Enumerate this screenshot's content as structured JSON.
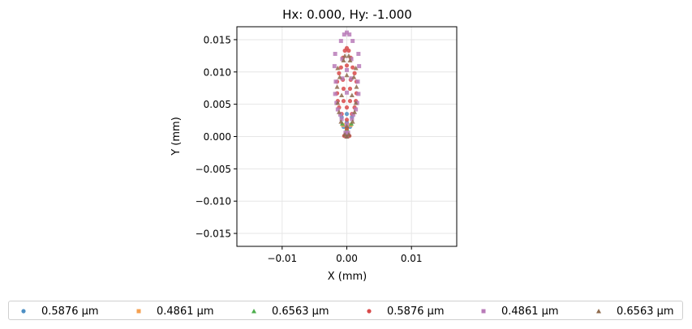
{
  "chart_data": {
    "type": "scatter",
    "title": "Hx: 0.000, Hy: -1.000",
    "xlabel": "X (mm)",
    "ylabel": "Y (mm)",
    "xlim": [
      -0.017,
      0.017
    ],
    "ylim": [
      -0.017,
      0.017
    ],
    "grid": true,
    "legend_placement": "bottom",
    "x_ticks": [
      -0.01,
      0.0,
      0.01
    ],
    "x_tick_labels": [
      "−0.01",
      "0.00",
      "0.01"
    ],
    "y_ticks": [
      0.015,
      0.01,
      0.005,
      0.0,
      -0.005,
      -0.01,
      -0.015
    ],
    "y_tick_labels": [
      "0.015",
      "0.010",
      "0.005",
      "0.000",
      "−0.005",
      "−0.010",
      "−0.015"
    ],
    "series": [
      {
        "name": "0.5876 µm",
        "marker": "circle",
        "color": "#4d8fc4",
        "points": [
          [
            0.0,
            0.0
          ],
          [
            -0.0003,
            0.0002
          ],
          [
            0.0003,
            0.0002
          ],
          [
            0.0,
            0.0008
          ],
          [
            -0.0005,
            0.0015
          ],
          [
            0.0005,
            0.0015
          ],
          [
            0.0,
            0.0022
          ],
          [
            -0.0008,
            0.003
          ],
          [
            0.0008,
            0.003
          ],
          [
            0.0,
            0.0035
          ]
        ]
      },
      {
        "name": "0.4861 µm",
        "marker": "square",
        "color": "#f5a050",
        "points": [
          [
            0.0,
            0.0
          ],
          [
            -0.0002,
            0.0003
          ],
          [
            0.0002,
            0.0003
          ],
          [
            0.0,
            0.001
          ],
          [
            -0.0006,
            0.0018
          ],
          [
            0.0006,
            0.0018
          ]
        ]
      },
      {
        "name": "0.6563 µm",
        "marker": "triangle",
        "color": "#4cae4c",
        "points": [
          [
            0.0,
            0.0
          ],
          [
            -0.0003,
            0.0004
          ],
          [
            0.0003,
            0.0004
          ],
          [
            0.0,
            0.0012
          ],
          [
            -0.0007,
            0.002
          ],
          [
            0.0007,
            0.002
          ]
        ]
      },
      {
        "name": "0.5876 µm",
        "marker": "circle",
        "color": "#d84a4a",
        "points": [
          [
            0.0,
            0.0
          ],
          [
            -0.0004,
            0.0001
          ],
          [
            0.0004,
            0.0001
          ],
          [
            0.0,
            0.0013
          ],
          [
            0.0,
            0.0026
          ],
          [
            -0.0008,
            0.0035
          ],
          [
            0.0008,
            0.0035
          ],
          [
            -0.0012,
            0.0045
          ],
          [
            0.0,
            0.0045
          ],
          [
            0.0012,
            0.0045
          ],
          [
            -0.0014,
            0.0055
          ],
          [
            -0.0005,
            0.0055
          ],
          [
            0.0005,
            0.0055
          ],
          [
            0.0014,
            0.0055
          ],
          [
            -0.0015,
            0.0067
          ],
          [
            0.0015,
            0.0067
          ],
          [
            -0.0005,
            0.0074
          ],
          [
            0.0005,
            0.0074
          ],
          [
            -0.0015,
            0.0085
          ],
          [
            -0.0006,
            0.0088
          ],
          [
            0.0006,
            0.0088
          ],
          [
            0.0015,
            0.0085
          ],
          [
            -0.0012,
            0.0098
          ],
          [
            0.0012,
            0.0098
          ],
          [
            -0.0009,
            0.0107
          ],
          [
            0.0,
            0.011
          ],
          [
            0.0009,
            0.0107
          ],
          [
            -0.0006,
            0.0122
          ],
          [
            0.0006,
            0.0122
          ],
          [
            -0.0003,
            0.0133
          ],
          [
            0.0003,
            0.0133
          ],
          [
            0.0,
            0.0137
          ]
        ]
      },
      {
        "name": "0.4861 µm",
        "marker": "square",
        "color": "#b87bb8",
        "points": [
          [
            0.0,
            0.0
          ],
          [
            -0.0002,
            0.0006
          ],
          [
            0.0002,
            0.0006
          ],
          [
            0.0,
            0.0019
          ],
          [
            -0.0008,
            0.0027
          ],
          [
            0.0008,
            0.0027
          ],
          [
            -0.001,
            0.0034
          ],
          [
            0.001,
            0.0034
          ],
          [
            -0.0014,
            0.0042
          ],
          [
            0.0014,
            0.0042
          ],
          [
            -0.0016,
            0.0052
          ],
          [
            0.0016,
            0.0052
          ],
          [
            -0.0018,
            0.0066
          ],
          [
            0.0,
            0.0068
          ],
          [
            0.0018,
            0.0066
          ],
          [
            -0.0017,
            0.0085
          ],
          [
            0.0017,
            0.0085
          ],
          [
            -0.0007,
            0.009
          ],
          [
            0.0007,
            0.009
          ],
          [
            -0.0019,
            0.0109
          ],
          [
            0.0,
            0.0103
          ],
          [
            0.0019,
            0.0109
          ],
          [
            -0.0018,
            0.0128
          ],
          [
            0.0018,
            0.0128
          ],
          [
            -0.0007,
            0.012
          ],
          [
            0.0007,
            0.012
          ],
          [
            -0.0009,
            0.0148
          ],
          [
            0.0009,
            0.0148
          ],
          [
            -0.0004,
            0.0158
          ],
          [
            0.0004,
            0.0158
          ],
          [
            0.0,
            0.0161
          ]
        ]
      },
      {
        "name": "0.6563 µm",
        "marker": "triangle",
        "color": "#8e6a4c",
        "points": [
          [
            0.0,
            0.0
          ],
          [
            -0.0003,
            0.0003
          ],
          [
            0.0003,
            0.0003
          ],
          [
            0.0,
            0.0016
          ],
          [
            -0.0009,
            0.0023
          ],
          [
            0.0009,
            0.0023
          ],
          [
            -0.0012,
            0.0038
          ],
          [
            0.0012,
            0.0038
          ],
          [
            -0.0014,
            0.0052
          ],
          [
            0.0014,
            0.0052
          ],
          [
            -0.0008,
            0.0064
          ],
          [
            0.0008,
            0.0064
          ],
          [
            -0.0015,
            0.0077
          ],
          [
            0.0015,
            0.0077
          ],
          [
            -0.0011,
            0.0092
          ],
          [
            0.0,
            0.0095
          ],
          [
            0.0011,
            0.0092
          ],
          [
            -0.0014,
            0.0106
          ],
          [
            0.0014,
            0.0106
          ],
          [
            -0.0005,
            0.0118
          ],
          [
            0.0005,
            0.0118
          ],
          [
            -0.0003,
            0.0125
          ],
          [
            0.0003,
            0.0125
          ]
        ]
      }
    ]
  }
}
